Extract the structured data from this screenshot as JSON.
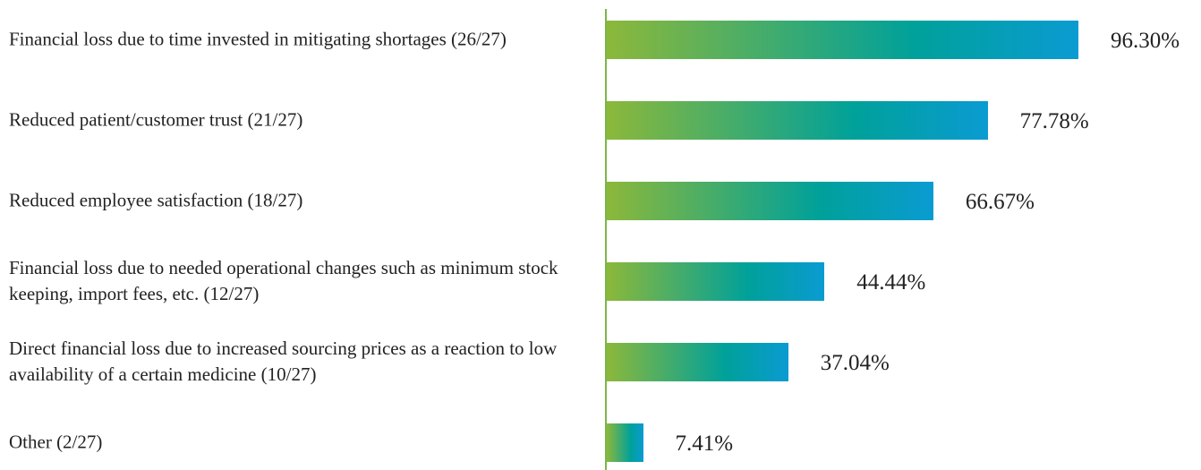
{
  "chart_data": {
    "type": "barh",
    "categories": [
      "Financial loss due to time invested in mitigating shortages (26/27)",
      "Reduced patient/customer trust (21/27)",
      "Reduced employee satisfaction (18/27)",
      "Financial loss due to needed operational changes such as minimum stock keeping, import fees, etc. (12/27)",
      "Direct financial loss due to increased sourcing prices as a reaction to low availability of a certain medicine (10/27)",
      "Other (2/27)"
    ],
    "values": [
      96.3,
      77.78,
      66.67,
      44.44,
      37.04,
      7.41
    ],
    "value_labels": [
      "96.30%",
      "77.78%",
      "66.67%",
      "44.44%",
      "37.04%",
      "7.41%"
    ],
    "color": [
      "#8cb83a",
      "#00a19a",
      "#0a9bd2"
    ]
  }
}
